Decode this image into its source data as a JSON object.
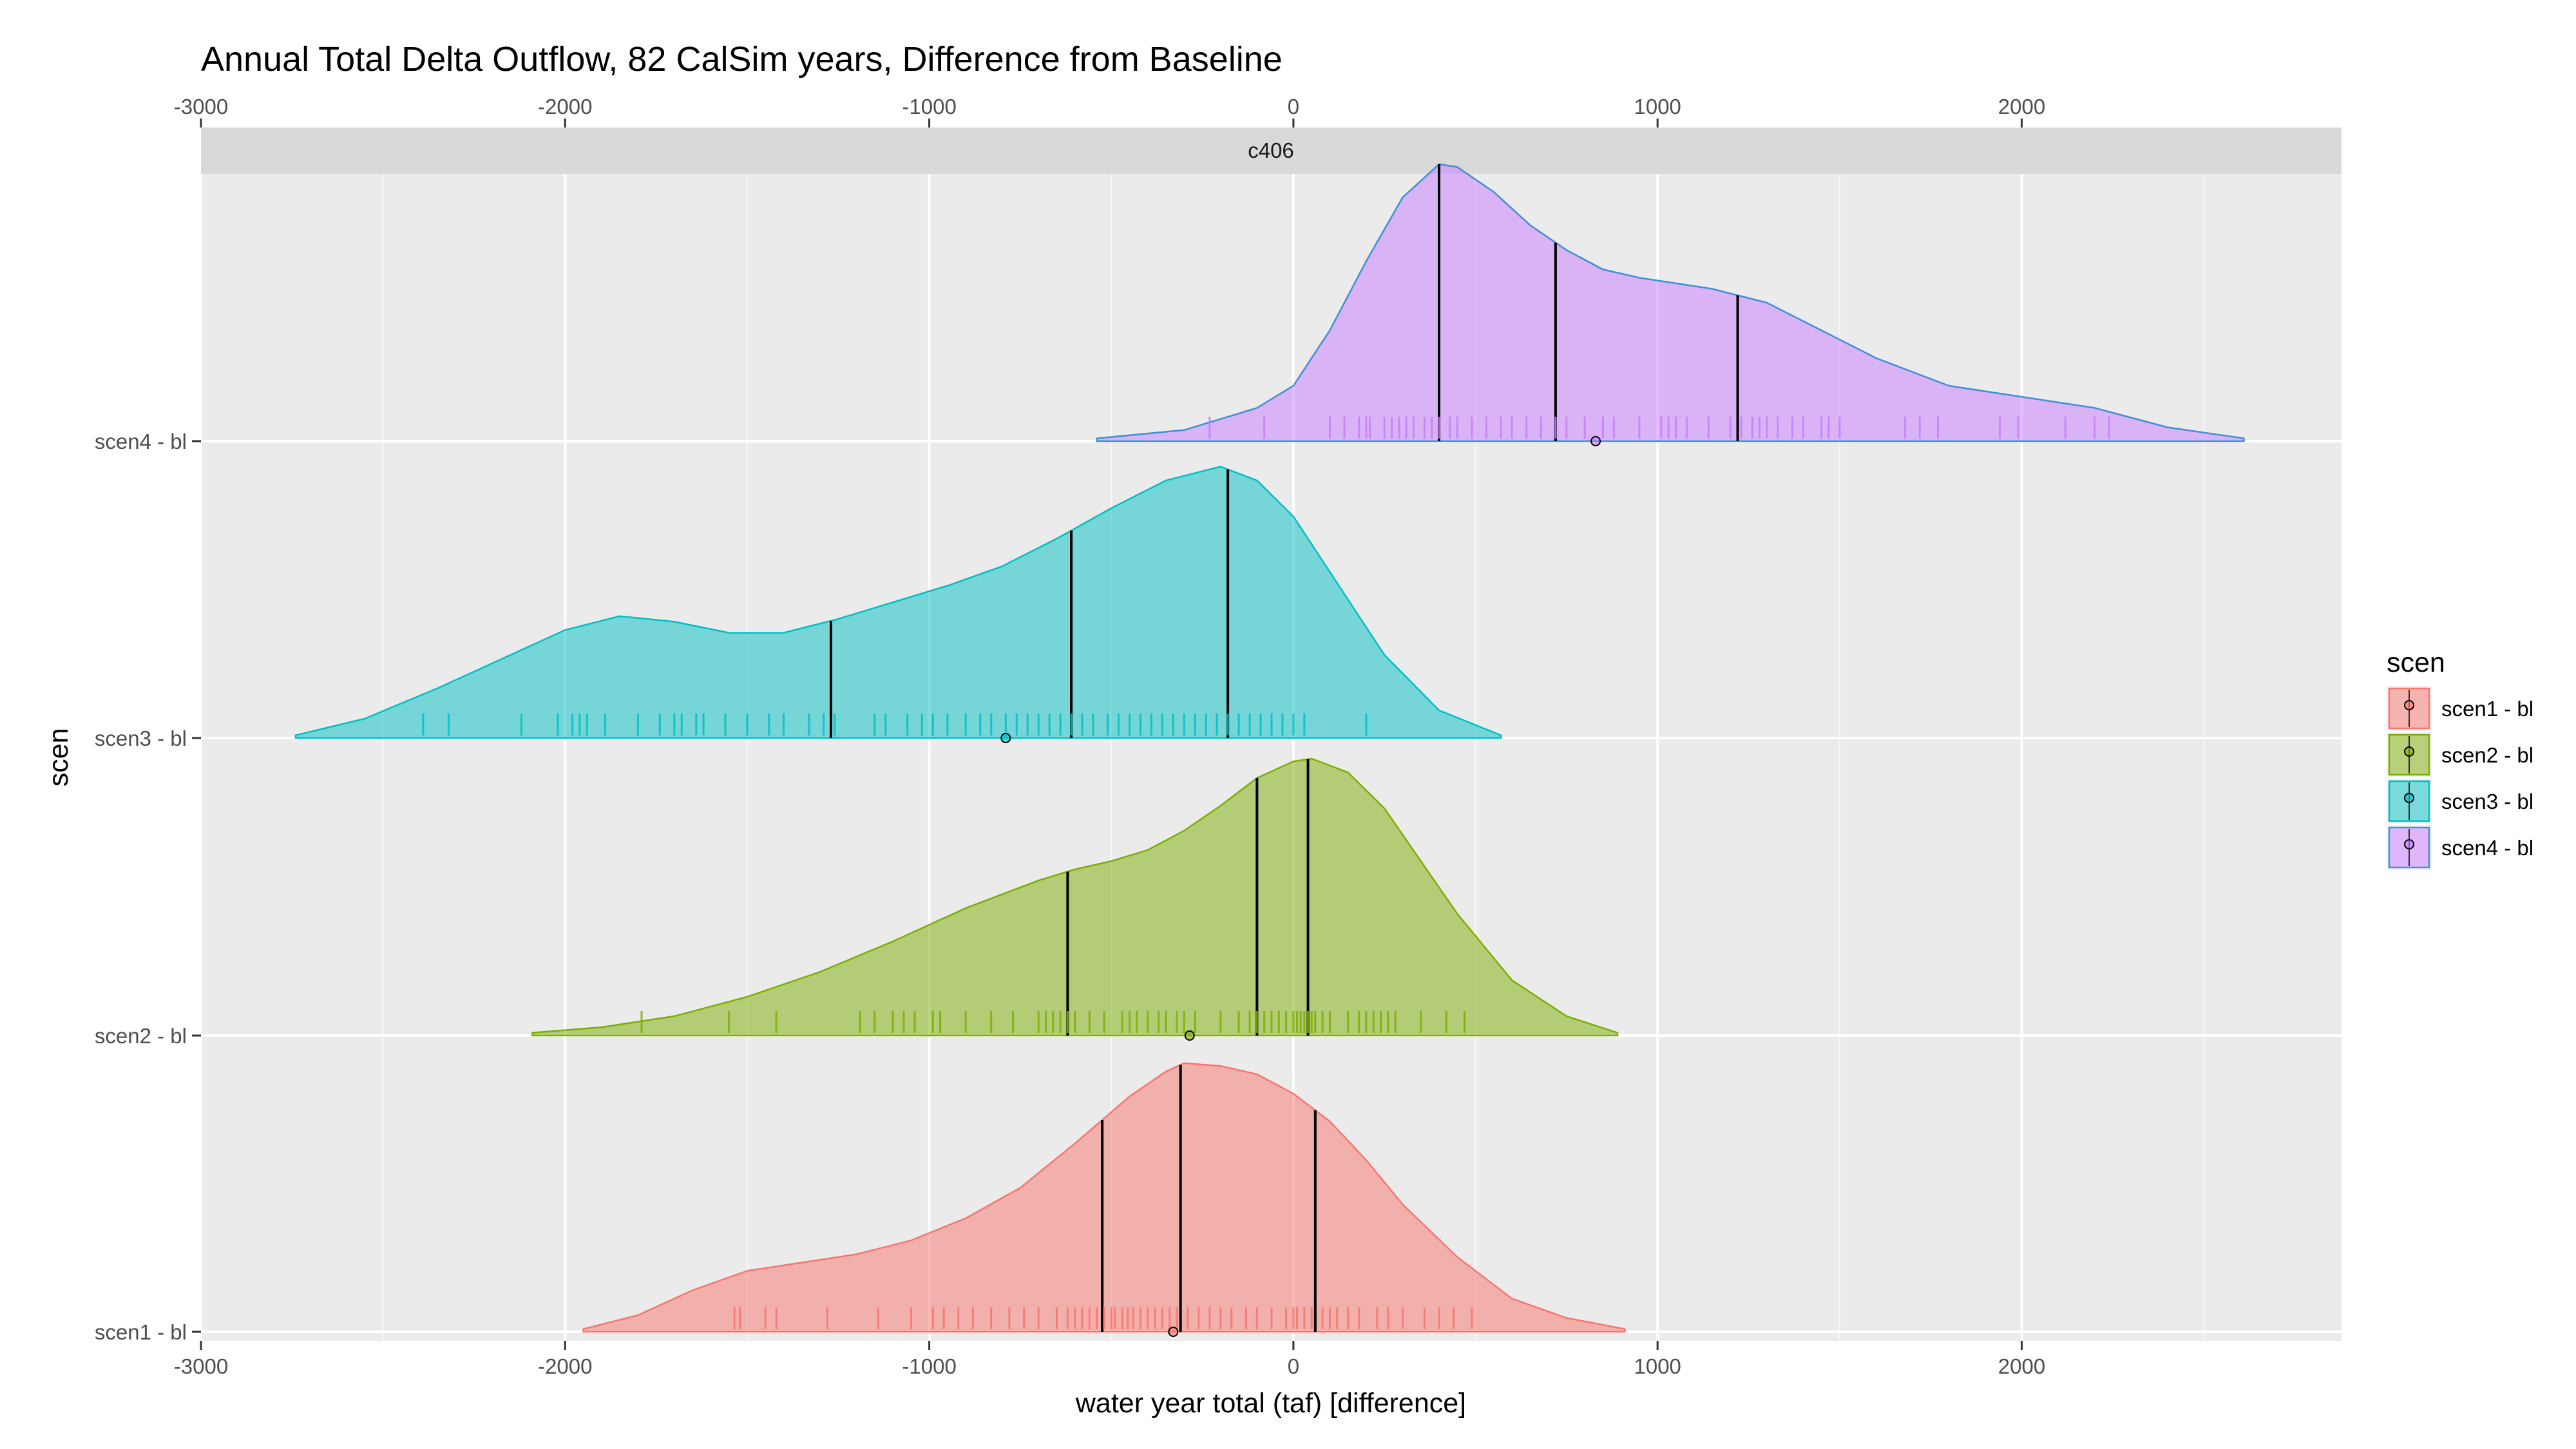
{
  "chart_data": {
    "type": "ridgeline-density",
    "title": "Annual Total Delta Outflow, 82 CalSim years, Difference from Baseline",
    "facet_label": "c406",
    "xlabel": "water year total (taf) [difference]",
    "ylabel": "scen",
    "xlim": [
      -3000,
      2850
    ],
    "x_ticks": [
      -3000,
      -2000,
      -1000,
      0,
      1000,
      2000
    ],
    "x_tick_labels": [
      "-3000",
      "-2000",
      "-1000",
      "0",
      "1000",
      "2000"
    ],
    "x_minor_ticks": [
      -2500,
      -1500,
      -500,
      500,
      1500,
      2500
    ],
    "grid": true,
    "legend_title": "scen",
    "legend_position": "right",
    "colors": {
      "panel_bg": "#ebebeb",
      "strip_bg": "#d9d9d9",
      "grid": "#ffffff",
      "quantile_line": "#000000"
    },
    "series": [
      {
        "name": "scen1 - bl",
        "label": "scen1 - bl",
        "fill": "#f8766d",
        "line": "#f8766d",
        "mean": -330,
        "quantiles": [
          -525,
          -310,
          60
        ],
        "range": [
          -1950,
          910
        ],
        "density_x": [
          -1950,
          -1800,
          -1650,
          -1500,
          -1350,
          -1200,
          -1050,
          -900,
          -750,
          -600,
          -450,
          -350,
          -300,
          -200,
          -100,
          0,
          100,
          200,
          300,
          450,
          600,
          750,
          910
        ],
        "density_y": [
          0.01,
          0.06,
          0.15,
          0.22,
          0.25,
          0.28,
          0.33,
          0.41,
          0.52,
          0.68,
          0.85,
          0.94,
          0.97,
          0.96,
          0.93,
          0.86,
          0.76,
          0.62,
          0.46,
          0.27,
          0.12,
          0.05,
          0.01
        ],
        "rug": [
          -1535,
          -1520,
          -1450,
          -1420,
          -1280,
          -1140,
          -1050,
          -990,
          -960,
          -920,
          -880,
          -830,
          -780,
          -740,
          -700,
          -650,
          -620,
          -600,
          -580,
          -560,
          -540,
          -520,
          -500,
          -490,
          -470,
          -455,
          -440,
          -420,
          -400,
          -380,
          -360,
          -340,
          -320,
          -290,
          -260,
          -230,
          -200,
          -170,
          -130,
          -100,
          -60,
          -20,
          0,
          10,
          30,
          50,
          80,
          100,
          120,
          150,
          180,
          230,
          260,
          300,
          360,
          400,
          440,
          490
        ]
      },
      {
        "name": "scen2 - bl",
        "label": "scen2 - bl",
        "fill": "#7cae00",
        "line": "#7cae00",
        "mean": -285,
        "quantiles": [
          -620,
          -100,
          40
        ],
        "range": [
          -2090,
          890
        ],
        "density_x": [
          -2090,
          -1900,
          -1700,
          -1500,
          -1300,
          -1100,
          -900,
          -700,
          -600,
          -500,
          -400,
          -300,
          -200,
          -100,
          0,
          50,
          150,
          250,
          350,
          450,
          600,
          750,
          890
        ],
        "density_y": [
          0.01,
          0.03,
          0.07,
          0.14,
          0.23,
          0.34,
          0.46,
          0.56,
          0.6,
          0.63,
          0.67,
          0.74,
          0.83,
          0.93,
          0.99,
          1.0,
          0.95,
          0.82,
          0.63,
          0.44,
          0.2,
          0.07,
          0.01
        ],
        "rug": [
          -1790,
          -1550,
          -1420,
          -1190,
          -1150,
          -1100,
          -1070,
          -1040,
          -990,
          -970,
          -900,
          -830,
          -770,
          -700,
          -680,
          -660,
          -640,
          -620,
          -600,
          -560,
          -520,
          -470,
          -450,
          -430,
          -400,
          -370,
          -350,
          -320,
          -300,
          -270,
          -200,
          -150,
          -120,
          -100,
          -80,
          -60,
          -40,
          -20,
          0,
          10,
          20,
          30,
          40,
          50,
          60,
          80,
          100,
          150,
          180,
          200,
          220,
          240,
          260,
          280,
          350,
          420,
          470
        ]
      },
      {
        "name": "scen3 - bl",
        "label": "scen3 - bl",
        "fill": "#00bfc4",
        "line": "#00bfc4",
        "mean": -790,
        "quantiles": [
          -1270,
          -610,
          -180
        ],
        "range": [
          -2740,
          570
        ],
        "density_x": [
          -2740,
          -2550,
          -2350,
          -2150,
          -2000,
          -1850,
          -1700,
          -1550,
          -1400,
          -1250,
          -1100,
          -950,
          -800,
          -650,
          -500,
          -350,
          -200,
          -100,
          0,
          100,
          250,
          400,
          570
        ],
        "density_y": [
          0.01,
          0.07,
          0.18,
          0.3,
          0.39,
          0.44,
          0.42,
          0.38,
          0.38,
          0.43,
          0.49,
          0.55,
          0.62,
          0.72,
          0.83,
          0.93,
          0.98,
          0.93,
          0.8,
          0.6,
          0.3,
          0.1,
          0.01
        ],
        "rug": [
          -2390,
          -2320,
          -2120,
          -2020,
          -1980,
          -1960,
          -1940,
          -1890,
          -1800,
          -1740,
          -1700,
          -1680,
          -1640,
          -1620,
          -1560,
          -1500,
          -1440,
          -1400,
          -1330,
          -1290,
          -1260,
          -1150,
          -1120,
          -1060,
          -1020,
          -990,
          -950,
          -900,
          -860,
          -830,
          -790,
          -760,
          -730,
          -700,
          -670,
          -640,
          -610,
          -580,
          -550,
          -510,
          -480,
          -450,
          -420,
          -390,
          -360,
          -330,
          -300,
          -270,
          -240,
          -210,
          -180,
          -150,
          -120,
          -90,
          -60,
          -30,
          0,
          30,
          200
        ]
      },
      {
        "name": "scen4 - bl",
        "label": "scen4 - bl",
        "fill": "#c77cff",
        "line": "#3d8fd9",
        "mean": 830,
        "quantiles": [
          400,
          720,
          1220
        ],
        "range": [
          -540,
          2610
        ],
        "density_x": [
          -540,
          -300,
          -100,
          0,
          100,
          200,
          300,
          400,
          450,
          550,
          650,
          750,
          850,
          950,
          1050,
          1150,
          1300,
          1450,
          1600,
          1800,
          2000,
          2200,
          2400,
          2610
        ],
        "density_y": [
          0.01,
          0.04,
          0.12,
          0.2,
          0.4,
          0.65,
          0.88,
          1.0,
          0.99,
          0.9,
          0.78,
          0.69,
          0.62,
          0.59,
          0.57,
          0.55,
          0.5,
          0.4,
          0.3,
          0.2,
          0.16,
          0.12,
          0.05,
          0.01
        ],
        "rug": [
          -230,
          -80,
          100,
          140,
          180,
          200,
          210,
          250,
          270,
          290,
          310,
          330,
          360,
          380,
          400,
          430,
          450,
          490,
          530,
          570,
          600,
          640,
          680,
          720,
          750,
          800,
          850,
          880,
          950,
          1010,
          1030,
          1050,
          1080,
          1140,
          1200,
          1230,
          1260,
          1280,
          1300,
          1330,
          1370,
          1400,
          1450,
          1470,
          1500,
          1680,
          1720,
          1770,
          1940,
          1990,
          2120,
          2200,
          2240
        ]
      }
    ]
  }
}
